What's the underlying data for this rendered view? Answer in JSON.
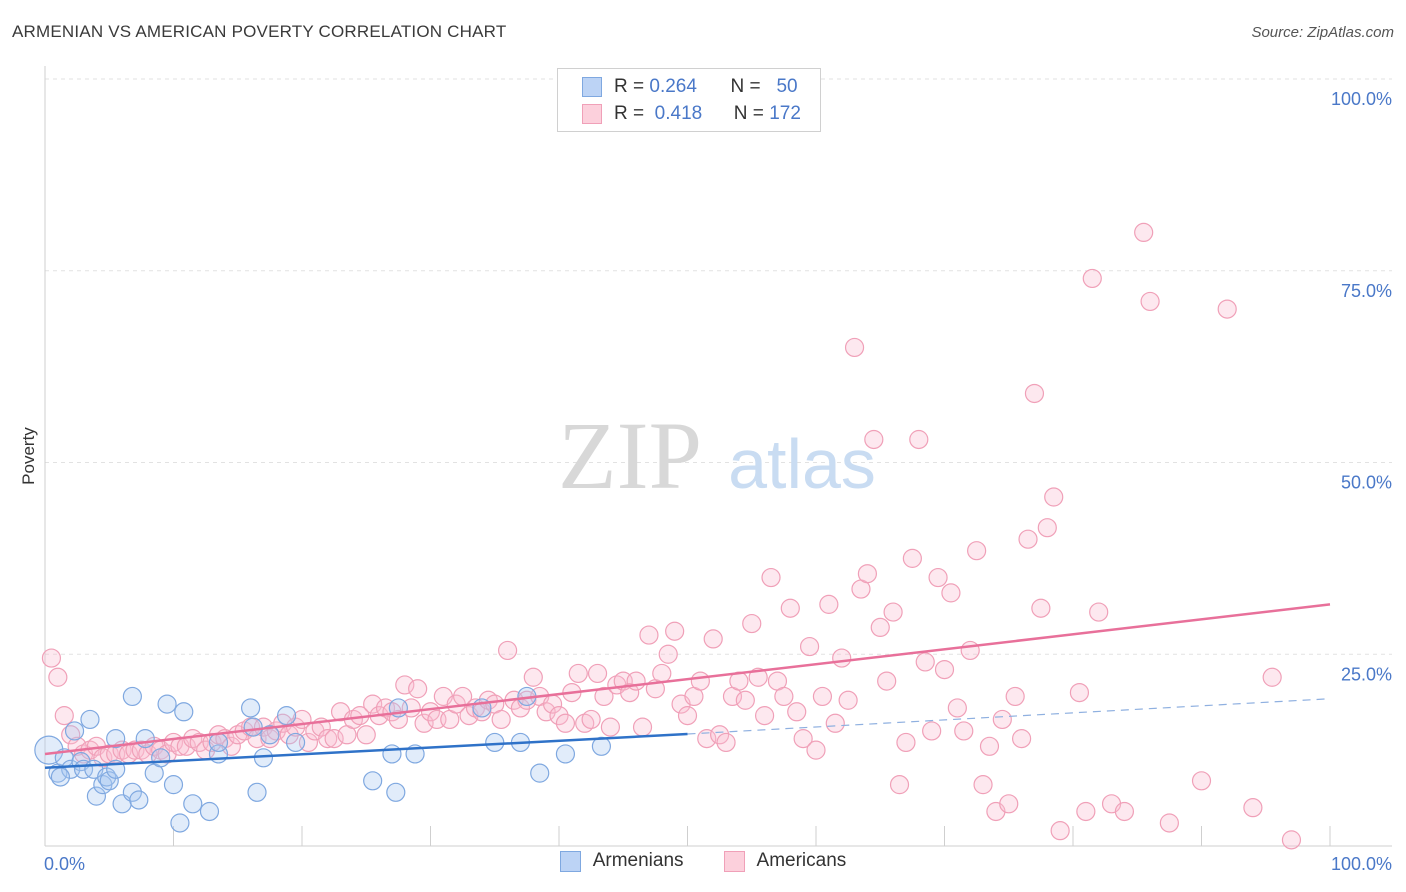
{
  "header": {
    "title": "ARMENIAN VS AMERICAN POVERTY CORRELATION CHART",
    "source": "Source: ZipAtlas.com"
  },
  "watermark": {
    "zip": "ZIP",
    "atlas": "atlas"
  },
  "stats_legend": {
    "rows": [
      {
        "r_label": "R =",
        "r_value": "0.264",
        "n_label": "N =",
        "n_value": "50",
        "color": "#7fa8e0",
        "fill": "#bcd3f5"
      },
      {
        "r_label": "R =",
        "r_value": "0.418",
        "n_label": "N =",
        "n_value": "172",
        "color": "#f0a0b8",
        "fill": "#fcd0dc"
      }
    ]
  },
  "bottom_legend": {
    "items": [
      {
        "label": "Armenians",
        "color": "#7fa8e0",
        "fill": "#bcd3f5"
      },
      {
        "label": "Americans",
        "color": "#f0a0b8",
        "fill": "#fcd0dc"
      }
    ]
  },
  "chart_data": {
    "type": "scatter",
    "title": "ARMENIAN VS AMERICAN POVERTY CORRELATION CHART",
    "xlabel": "",
    "ylabel": "Poverty",
    "xlim": [
      0,
      100
    ],
    "ylim": [
      0,
      100
    ],
    "x_tick_labels": [
      "0.0%",
      "100.0%"
    ],
    "y_tick_labels": [
      "25.0%",
      "50.0%",
      "75.0%",
      "100.0%"
    ],
    "y_ticks": [
      25,
      50,
      75,
      100
    ],
    "grid": true,
    "colors": {
      "blue": "#4f86d4",
      "pink": "#e8709a",
      "blue_line": "#2f72c8",
      "pink_line": "#e8709a",
      "tick_text": "#4a78c8"
    },
    "series": [
      {
        "name": "Armenians",
        "trend": {
          "x0": 0,
          "y0": 10.2,
          "x1": 50,
          "y1": 14.6,
          "dash_to_x": 100,
          "dash_to_y": 19.2
        },
        "points": [
          [
            0.3,
            12.5
          ],
          [
            1.0,
            9.5
          ],
          [
            1.5,
            11.5
          ],
          [
            2.0,
            10.0
          ],
          [
            2.3,
            15.0
          ],
          [
            2.8,
            11.0
          ],
          [
            3.0,
            10.0
          ],
          [
            3.5,
            16.5
          ],
          [
            3.8,
            10.0
          ],
          [
            4.0,
            6.5
          ],
          [
            4.5,
            8.0
          ],
          [
            4.8,
            9.0
          ],
          [
            5.0,
            8.5
          ],
          [
            5.5,
            10.0
          ],
          [
            5.5,
            14.0
          ],
          [
            6.0,
            5.5
          ],
          [
            6.8,
            19.5
          ],
          [
            6.8,
            7.0
          ],
          [
            7.3,
            6.0
          ],
          [
            7.8,
            14.0
          ],
          [
            8.5,
            9.5
          ],
          [
            9.0,
            11.5
          ],
          [
            9.5,
            18.5
          ],
          [
            10.0,
            8.0
          ],
          [
            10.5,
            3.0
          ],
          [
            10.8,
            17.5
          ],
          [
            11.5,
            5.5
          ],
          [
            12.8,
            4.5
          ],
          [
            13.5,
            12.0
          ],
          [
            13.5,
            13.5
          ],
          [
            16.0,
            18.0
          ],
          [
            16.5,
            7.0
          ],
          [
            17.0,
            11.5
          ],
          [
            17.5,
            14.5
          ],
          [
            18.8,
            17.0
          ],
          [
            19.5,
            13.5
          ],
          [
            25.5,
            8.5
          ],
          [
            27.0,
            12.0
          ],
          [
            27.3,
            7.0
          ],
          [
            27.5,
            18.0
          ],
          [
            28.8,
            12.0
          ],
          [
            34.0,
            18.0
          ],
          [
            35.0,
            13.5
          ],
          [
            37.0,
            13.5
          ],
          [
            37.5,
            19.5
          ],
          [
            38.5,
            9.5
          ],
          [
            40.5,
            12.0
          ],
          [
            43.3,
            13.0
          ],
          [
            16.2,
            15.5
          ],
          [
            1.2,
            9.0
          ]
        ]
      },
      {
        "name": "Americans",
        "trend": {
          "x0": 0,
          "y0": 12.0,
          "x1": 100,
          "y1": 31.5
        },
        "points": [
          [
            0.5,
            24.5
          ],
          [
            1.0,
            22.0
          ],
          [
            1.5,
            17.0
          ],
          [
            2.0,
            14.5
          ],
          [
            2.5,
            13.0
          ],
          [
            3.0,
            12.0
          ],
          [
            3.5,
            12.5
          ],
          [
            4.0,
            13.0
          ],
          [
            4.5,
            11.5
          ],
          [
            5.0,
            12.0
          ],
          [
            5.5,
            12.0
          ],
          [
            6.0,
            12.5
          ],
          [
            6.5,
            12.0
          ],
          [
            7.0,
            12.5
          ],
          [
            7.5,
            12.5
          ],
          [
            8.0,
            12.0
          ],
          [
            8.5,
            13.0
          ],
          [
            9.0,
            12.5
          ],
          [
            9.5,
            12.0
          ],
          [
            10.0,
            13.5
          ],
          [
            10.5,
            13.0
          ],
          [
            11.0,
            13.0
          ],
          [
            11.5,
            14.0
          ],
          [
            12.0,
            13.5
          ],
          [
            12.5,
            12.5
          ],
          [
            13.0,
            13.5
          ],
          [
            13.5,
            14.5
          ],
          [
            14.0,
            14.0
          ],
          [
            14.5,
            13.0
          ],
          [
            15.0,
            14.5
          ],
          [
            15.5,
            15.0
          ],
          [
            16.0,
            15.5
          ],
          [
            16.5,
            14.0
          ],
          [
            17.0,
            15.5
          ],
          [
            17.5,
            14.0
          ],
          [
            18.0,
            15.0
          ],
          [
            18.5,
            16.0
          ],
          [
            19.0,
            14.5
          ],
          [
            19.5,
            15.5
          ],
          [
            20.0,
            16.5
          ],
          [
            20.5,
            13.5
          ],
          [
            21.0,
            15.0
          ],
          [
            21.5,
            15.5
          ],
          [
            22.0,
            14.0
          ],
          [
            22.5,
            14.0
          ],
          [
            23.0,
            17.5
          ],
          [
            23.5,
            14.5
          ],
          [
            24.0,
            16.5
          ],
          [
            24.5,
            17.0
          ],
          [
            25.0,
            14.5
          ],
          [
            25.5,
            18.5
          ],
          [
            26.0,
            17.0
          ],
          [
            26.5,
            18.0
          ],
          [
            27.0,
            17.5
          ],
          [
            27.5,
            16.5
          ],
          [
            28.0,
            21.0
          ],
          [
            28.5,
            18.0
          ],
          [
            29.0,
            20.5
          ],
          [
            29.5,
            16.0
          ],
          [
            30.0,
            17.5
          ],
          [
            30.5,
            16.5
          ],
          [
            31.0,
            19.5
          ],
          [
            31.5,
            16.5
          ],
          [
            32.0,
            18.5
          ],
          [
            32.5,
            19.5
          ],
          [
            33.0,
            17.0
          ],
          [
            33.5,
            18.0
          ],
          [
            34.0,
            17.5
          ],
          [
            34.5,
            19.0
          ],
          [
            35.0,
            18.5
          ],
          [
            35.5,
            16.5
          ],
          [
            36.0,
            25.5
          ],
          [
            36.5,
            19.0
          ],
          [
            37.0,
            18.0
          ],
          [
            37.5,
            19.0
          ],
          [
            38.0,
            22.0
          ],
          [
            38.5,
            19.5
          ],
          [
            39.0,
            17.5
          ],
          [
            39.5,
            18.5
          ],
          [
            40.0,
            17.0
          ],
          [
            40.5,
            16.0
          ],
          [
            41.0,
            20.0
          ],
          [
            41.5,
            22.5
          ],
          [
            42.0,
            16.0
          ],
          [
            42.5,
            16.5
          ],
          [
            43.0,
            22.5
          ],
          [
            43.5,
            19.5
          ],
          [
            44.0,
            15.5
          ],
          [
            44.5,
            21.0
          ],
          [
            45.0,
            21.5
          ],
          [
            45.5,
            20.0
          ],
          [
            46.0,
            21.5
          ],
          [
            46.5,
            15.5
          ],
          [
            47.0,
            27.5
          ],
          [
            47.5,
            20.5
          ],
          [
            48.0,
            22.5
          ],
          [
            48.5,
            25.0
          ],
          [
            49.0,
            28.0
          ],
          [
            49.5,
            18.5
          ],
          [
            50.0,
            17.0
          ],
          [
            50.5,
            19.5
          ],
          [
            51.0,
            21.5
          ],
          [
            51.5,
            14.0
          ],
          [
            52.0,
            27.0
          ],
          [
            52.5,
            14.5
          ],
          [
            53.0,
            13.5
          ],
          [
            53.5,
            19.5
          ],
          [
            54.0,
            21.5
          ],
          [
            54.5,
            19.0
          ],
          [
            55.0,
            29.0
          ],
          [
            55.5,
            22.0
          ],
          [
            56.0,
            17.0
          ],
          [
            56.5,
            35.0
          ],
          [
            57.0,
            21.5
          ],
          [
            57.5,
            19.5
          ],
          [
            58.0,
            31.0
          ],
          [
            58.5,
            17.5
          ],
          [
            59.0,
            14.0
          ],
          [
            59.5,
            26.0
          ],
          [
            60.0,
            12.5
          ],
          [
            60.5,
            19.5
          ],
          [
            61.0,
            31.5
          ],
          [
            61.5,
            16.0
          ],
          [
            62.0,
            24.5
          ],
          [
            62.5,
            19.0
          ],
          [
            63.0,
            65.0
          ],
          [
            63.5,
            33.5
          ],
          [
            64.0,
            35.5
          ],
          [
            64.5,
            53.0
          ],
          [
            65.0,
            28.5
          ],
          [
            65.5,
            21.5
          ],
          [
            66.0,
            30.5
          ],
          [
            66.5,
            8.0
          ],
          [
            67.0,
            13.5
          ],
          [
            67.5,
            37.5
          ],
          [
            68.0,
            53.0
          ],
          [
            68.5,
            24.0
          ],
          [
            69.0,
            15.0
          ],
          [
            69.5,
            35.0
          ],
          [
            70.0,
            23.0
          ],
          [
            70.5,
            33.0
          ],
          [
            71.0,
            18.0
          ],
          [
            71.5,
            15.0
          ],
          [
            72.0,
            25.5
          ],
          [
            72.5,
            38.5
          ],
          [
            73.0,
            8.0
          ],
          [
            73.5,
            13.0
          ],
          [
            74.0,
            4.5
          ],
          [
            74.5,
            16.5
          ],
          [
            75.0,
            5.5
          ],
          [
            75.5,
            19.5
          ],
          [
            76.0,
            14.0
          ],
          [
            76.5,
            40.0
          ],
          [
            77.0,
            59.0
          ],
          [
            77.5,
            31.0
          ],
          [
            78.0,
            41.5
          ],
          [
            78.5,
            45.5
          ],
          [
            79.0,
            2.0
          ],
          [
            80.5,
            20.0
          ],
          [
            81.0,
            4.5
          ],
          [
            81.5,
            74.0
          ],
          [
            82.0,
            30.5
          ],
          [
            83.0,
            5.5
          ],
          [
            84.0,
            4.5
          ],
          [
            85.5,
            80.0
          ],
          [
            86.0,
            71.0
          ],
          [
            87.5,
            3.0
          ],
          [
            90.0,
            8.5
          ],
          [
            92.0,
            70.0
          ],
          [
            94.0,
            5.0
          ],
          [
            95.5,
            22.0
          ],
          [
            97.0,
            0.8
          ]
        ]
      }
    ]
  }
}
